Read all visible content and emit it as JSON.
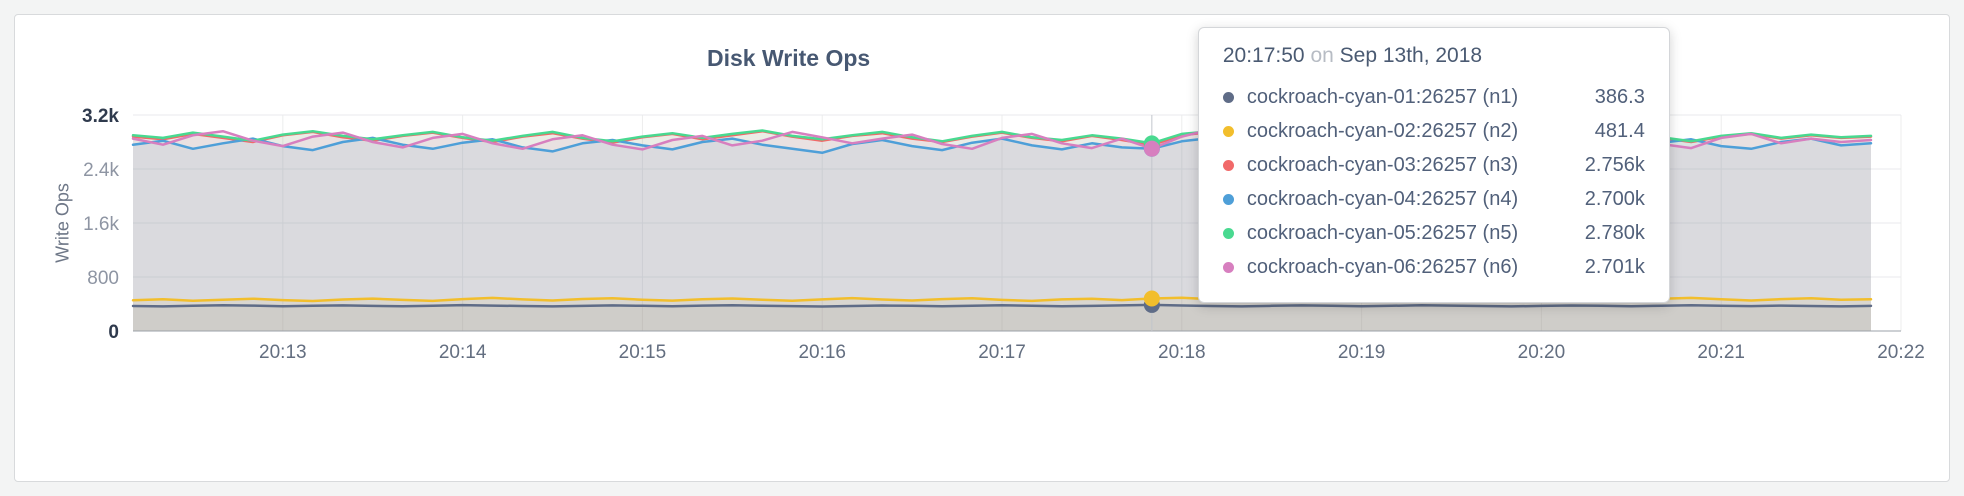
{
  "panel": {
    "title": "Disk Write Ops"
  },
  "tooltip": {
    "time": "20:17:50",
    "on_word": "on",
    "date": "Sep 13th, 2018",
    "rows": [
      {
        "name": "cockroach-cyan-01:26257 (n1)",
        "value": "386.3",
        "color": "#5F6C87"
      },
      {
        "name": "cockroach-cyan-02:26257 (n2)",
        "value": "481.4",
        "color": "#F2BE2C"
      },
      {
        "name": "cockroach-cyan-03:26257 (n3)",
        "value": "2.756k",
        "color": "#F16969"
      },
      {
        "name": "cockroach-cyan-04:26257 (n4)",
        "value": "2.700k",
        "color": "#4E9FD8"
      },
      {
        "name": "cockroach-cyan-05:26257 (n5)",
        "value": "2.780k",
        "color": "#49D990"
      },
      {
        "name": "cockroach-cyan-06:26257 (n6)",
        "value": "2.701k",
        "color": "#D77FBF"
      }
    ]
  },
  "chart_data": {
    "type": "line",
    "title": "Disk Write Ops",
    "xlabel": "",
    "ylabel": "Write Ops",
    "ylim": [
      0,
      3200
    ],
    "grid": true,
    "legend_position": "tooltip-overlay",
    "area_fill_opacity": 0.1,
    "point_interval_seconds": 10,
    "x_domain": [
      0,
      59
    ],
    "hover_index": 34,
    "hover_time": "20:17:50",
    "y_ticks": [
      {
        "value": 0,
        "label": "0",
        "emph": true
      },
      {
        "value": 800,
        "label": "800",
        "emph": false
      },
      {
        "value": 1600,
        "label": "1.6k",
        "emph": false
      },
      {
        "value": 2400,
        "label": "2.4k",
        "emph": false
      },
      {
        "value": 3200,
        "label": "3.2k",
        "emph": true
      }
    ],
    "x_ticks": [
      {
        "i": 5,
        "label": "20:13"
      },
      {
        "i": 11,
        "label": "20:14"
      },
      {
        "i": 17,
        "label": "20:15"
      },
      {
        "i": 23,
        "label": "20:16"
      },
      {
        "i": 29,
        "label": "20:17"
      },
      {
        "i": 35,
        "label": "20:18"
      },
      {
        "i": 41,
        "label": "20:19"
      },
      {
        "i": 47,
        "label": "20:20"
      },
      {
        "i": 53,
        "label": "20:21"
      },
      {
        "i": 59,
        "label": "20:22"
      }
    ],
    "series": [
      {
        "name": "cockroach-cyan-01:26257 (n1)",
        "color": "#5F6C87",
        "values": [
          371,
          365,
          374,
          381,
          376,
          368,
          373,
          380,
          372,
          366,
          375,
          383,
          377,
          370,
          364,
          372,
          379,
          374,
          368,
          376,
          382,
          375,
          369,
          363,
          371,
          378,
          373,
          367,
          375,
          381,
          374,
          368,
          372,
          379,
          386.3,
          378,
          371,
          365,
          373,
          380,
          375,
          368,
          374,
          382,
          376,
          370,
          364,
          372,
          378,
          373,
          367,
          375,
          381,
          374,
          369,
          376,
          370,
          365,
          372
        ]
      },
      {
        "name": "cockroach-cyan-02:26257 (n2)",
        "color": "#F2BE2C",
        "values": [
          455,
          470,
          448,
          462,
          478,
          458,
          444,
          466,
          480,
          460,
          446,
          472,
          490,
          468,
          452,
          474,
          486,
          464,
          450,
          470,
          482,
          462,
          448,
          468,
          488,
          466,
          452,
          472,
          484,
          460,
          446,
          468,
          478,
          458,
          481.4,
          492,
          470,
          454,
          474,
          486,
          466,
          450,
          470,
          482,
          464,
          448,
          468,
          480,
          460,
          446,
          466,
          478,
          490,
          470,
          452,
          472,
          484,
          462,
          470
        ]
      },
      {
        "name": "cockroach-cyan-03:26257 (n3)",
        "color": "#F16969",
        "values": [
          2880,
          2840,
          2920,
          2860,
          2800,
          2900,
          2950,
          2870,
          2820,
          2890,
          2940,
          2860,
          2800,
          2880,
          2930,
          2850,
          2790,
          2870,
          2920,
          2840,
          2900,
          2960,
          2880,
          2820,
          2890,
          2930,
          2850,
          2800,
          2880,
          2940,
          2860,
          2810,
          2890,
          2830,
          2756,
          2900,
          2950,
          2870,
          2820,
          2890,
          2940,
          2860,
          2800,
          2880,
          2930,
          2850,
          2960,
          2870,
          2820,
          2890,
          2940,
          2860,
          2800,
          2880,
          2920,
          2850,
          2900,
          2860,
          2880
        ]
      },
      {
        "name": "cockroach-cyan-04:26257 (n4)",
        "color": "#4E9FD8",
        "values": [
          2760,
          2820,
          2700,
          2780,
          2850,
          2740,
          2680,
          2800,
          2860,
          2760,
          2700,
          2790,
          2840,
          2720,
          2660,
          2780,
          2830,
          2750,
          2690,
          2800,
          2850,
          2760,
          2700,
          2640,
          2770,
          2830,
          2740,
          2680,
          2790,
          2850,
          2750,
          2690,
          2780,
          2720,
          2700,
          2810,
          2860,
          2760,
          2700,
          2790,
          2840,
          2740,
          2680,
          2800,
          2850,
          2750,
          2690,
          2780,
          2830,
          2730,
          2670,
          2790,
          2840,
          2740,
          2700,
          2800,
          2850,
          2750,
          2780
        ]
      },
      {
        "name": "cockroach-cyan-05:26257 (n5)",
        "color": "#49D990",
        "values": [
          2900,
          2860,
          2940,
          2880,
          2820,
          2910,
          2960,
          2890,
          2840,
          2900,
          2950,
          2870,
          2820,
          2890,
          2950,
          2860,
          2810,
          2880,
          2930,
          2860,
          2920,
          2970,
          2890,
          2840,
          2900,
          2950,
          2870,
          2810,
          2890,
          2950,
          2870,
          2830,
          2900,
          2850,
          2780,
          2920,
          2960,
          2880,
          2830,
          2900,
          2950,
          2870,
          2820,
          2890,
          2940,
          2860,
          2970,
          2890,
          2830,
          2900,
          2950,
          2870,
          2810,
          2890,
          2930,
          2860,
          2910,
          2870,
          2890
        ]
      },
      {
        "name": "cockroach-cyan-06:26257 (n6)",
        "color": "#D77FBF",
        "values": [
          2850,
          2760,
          2900,
          2960,
          2820,
          2740,
          2880,
          2940,
          2800,
          2720,
          2860,
          2920,
          2780,
          2700,
          2840,
          2900,
          2760,
          2690,
          2830,
          2890,
          2750,
          2820,
          2950,
          2870,
          2780,
          2850,
          2910,
          2770,
          2700,
          2860,
          2920,
          2780,
          2710,
          2850,
          2701,
          2880,
          2990,
          2850,
          2760,
          2840,
          2900,
          2770,
          2700,
          2850,
          2910,
          2780,
          3010,
          2870,
          2780,
          2850,
          2910,
          2770,
          2710,
          2860,
          2920,
          2780,
          2850,
          2800,
          2830
        ]
      }
    ]
  }
}
